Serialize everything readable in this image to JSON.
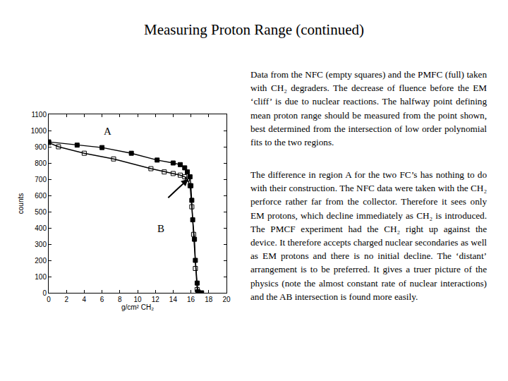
{
  "title": "Measuring Proton Range (continued)",
  "text": [
    "Data from the NFC (empty squares) and the PMFC (full) taken with CH₂ degraders. The decrease of fluence before the EM ‘cliff’ is due to nuclear reactions. The halfway point defining mean proton range should be measured from the point shown, best determined from the intersection of low order polynomial fits to the two regions.",
    "The difference in region A for the two FC’s has nothing to do with their construction. The NFC data were taken with the CH₂ perforce rather far from the collector. Therefore it sees only EM protons, which decline immediately as CH₂ is introduced. The PMCF experiment had the CH₂ right up against the device. It therefore accepts charged nuclear secondaries as well as EM protons and there is no initial decline. The ‘distant’ arrangement is to be preferred. It gives a truer picture of the physics (note the almost constant rate of nuclear interactions) and the AB intersection is found more easily."
  ],
  "chart_data": {
    "type": "line",
    "x_label": "g/cm² CH₂",
    "y_label": "counts",
    "annotations": [
      "A",
      "B"
    ],
    "series": [
      {
        "color": "#000000",
        "marker": "square",
        "line_style": "solid",
        "x": [
          0,
          3.2,
          6,
          9.3,
          12.2,
          14,
          14.8,
          15.3,
          15.6,
          15.9,
          16.0,
          16.1,
          16.2,
          16.4,
          16.5,
          16.7,
          16.8,
          17.2
        ],
        "values": [
          930,
          910,
          895,
          860,
          818,
          800,
          790,
          770,
          745,
          715,
          660,
          570,
          450,
          330,
          200,
          60,
          5,
          0
        ]
      },
      {
        "color": "#000000",
        "marker": "square-open",
        "line_style": "solid",
        "x": [
          0,
          1.1,
          4.0,
          7.3,
          11.5,
          13,
          14,
          14.8,
          15.3,
          15.6,
          15.9,
          16.1,
          16.3,
          16.5,
          16.7,
          16.8
        ],
        "values": [
          925,
          900,
          860,
          825,
          765,
          745,
          735,
          725,
          715,
          700,
          660,
          530,
          360,
          150,
          20,
          5
        ]
      }
    ],
    "xlim": [
      0,
      20
    ],
    "xticks": [
      0,
      2,
      4,
      6,
      8,
      10,
      12,
      14,
      16,
      18,
      20
    ],
    "ylim": [
      0,
      1100
    ],
    "yticks": [
      0,
      100,
      200,
      300,
      400,
      500,
      600,
      700,
      800,
      900,
      1000,
      1100
    ],
    "grid": false
  }
}
